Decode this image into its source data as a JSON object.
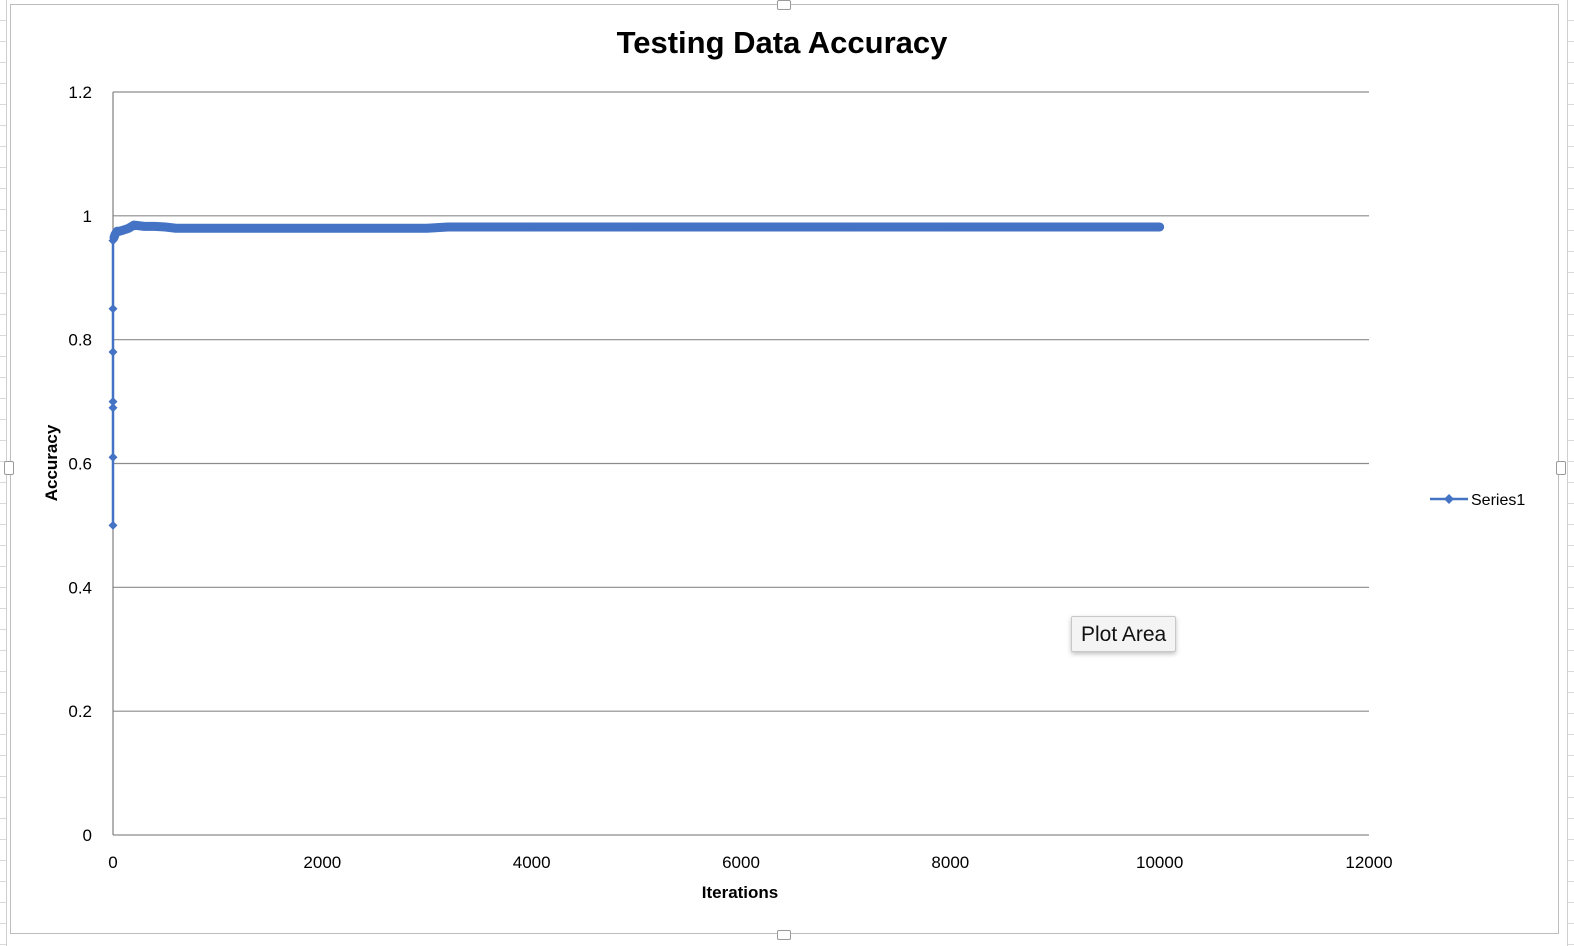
{
  "chart_data": {
    "type": "line",
    "title": "Testing Data Accuracy",
    "xlabel": "Iterations",
    "ylabel": "Accuracy",
    "xlim": [
      0,
      12000
    ],
    "ylim": [
      0,
      1.2
    ],
    "xticks": [
      "0",
      "2000",
      "4000",
      "6000",
      "8000",
      "10000",
      "12000"
    ],
    "yticks": [
      "0",
      "0.2",
      "0.4",
      "0.6",
      "0.8",
      "1",
      "1.2"
    ],
    "grid": "horizontal",
    "legend_position": "right",
    "series": [
      {
        "name": "Series1",
        "color": "#4472C4",
        "marker": "diamond",
        "points": [
          [
            0,
            0.5
          ],
          [
            0,
            0.61
          ],
          [
            0,
            0.69
          ],
          [
            0,
            0.7
          ],
          [
            0,
            0.78
          ],
          [
            0,
            0.85
          ],
          [
            0,
            0.96
          ],
          [
            10,
            0.965
          ],
          [
            20,
            0.97
          ],
          [
            40,
            0.975
          ],
          [
            60,
            0.975
          ],
          [
            100,
            0.977
          ],
          [
            150,
            0.98
          ],
          [
            200,
            0.985
          ],
          [
            300,
            0.983
          ],
          [
            400,
            0.983
          ],
          [
            500,
            0.982
          ],
          [
            600,
            0.98
          ],
          [
            1000,
            0.98
          ],
          [
            1500,
            0.98
          ],
          [
            2000,
            0.98
          ],
          [
            2500,
            0.98
          ],
          [
            3000,
            0.98
          ],
          [
            3200,
            0.982
          ],
          [
            4000,
            0.982
          ],
          [
            5000,
            0.982
          ],
          [
            6000,
            0.982
          ],
          [
            7000,
            0.982
          ],
          [
            8000,
            0.982
          ],
          [
            9000,
            0.982
          ],
          [
            10000,
            0.982
          ]
        ]
      }
    ]
  },
  "tooltip": {
    "label": "Plot Area"
  }
}
